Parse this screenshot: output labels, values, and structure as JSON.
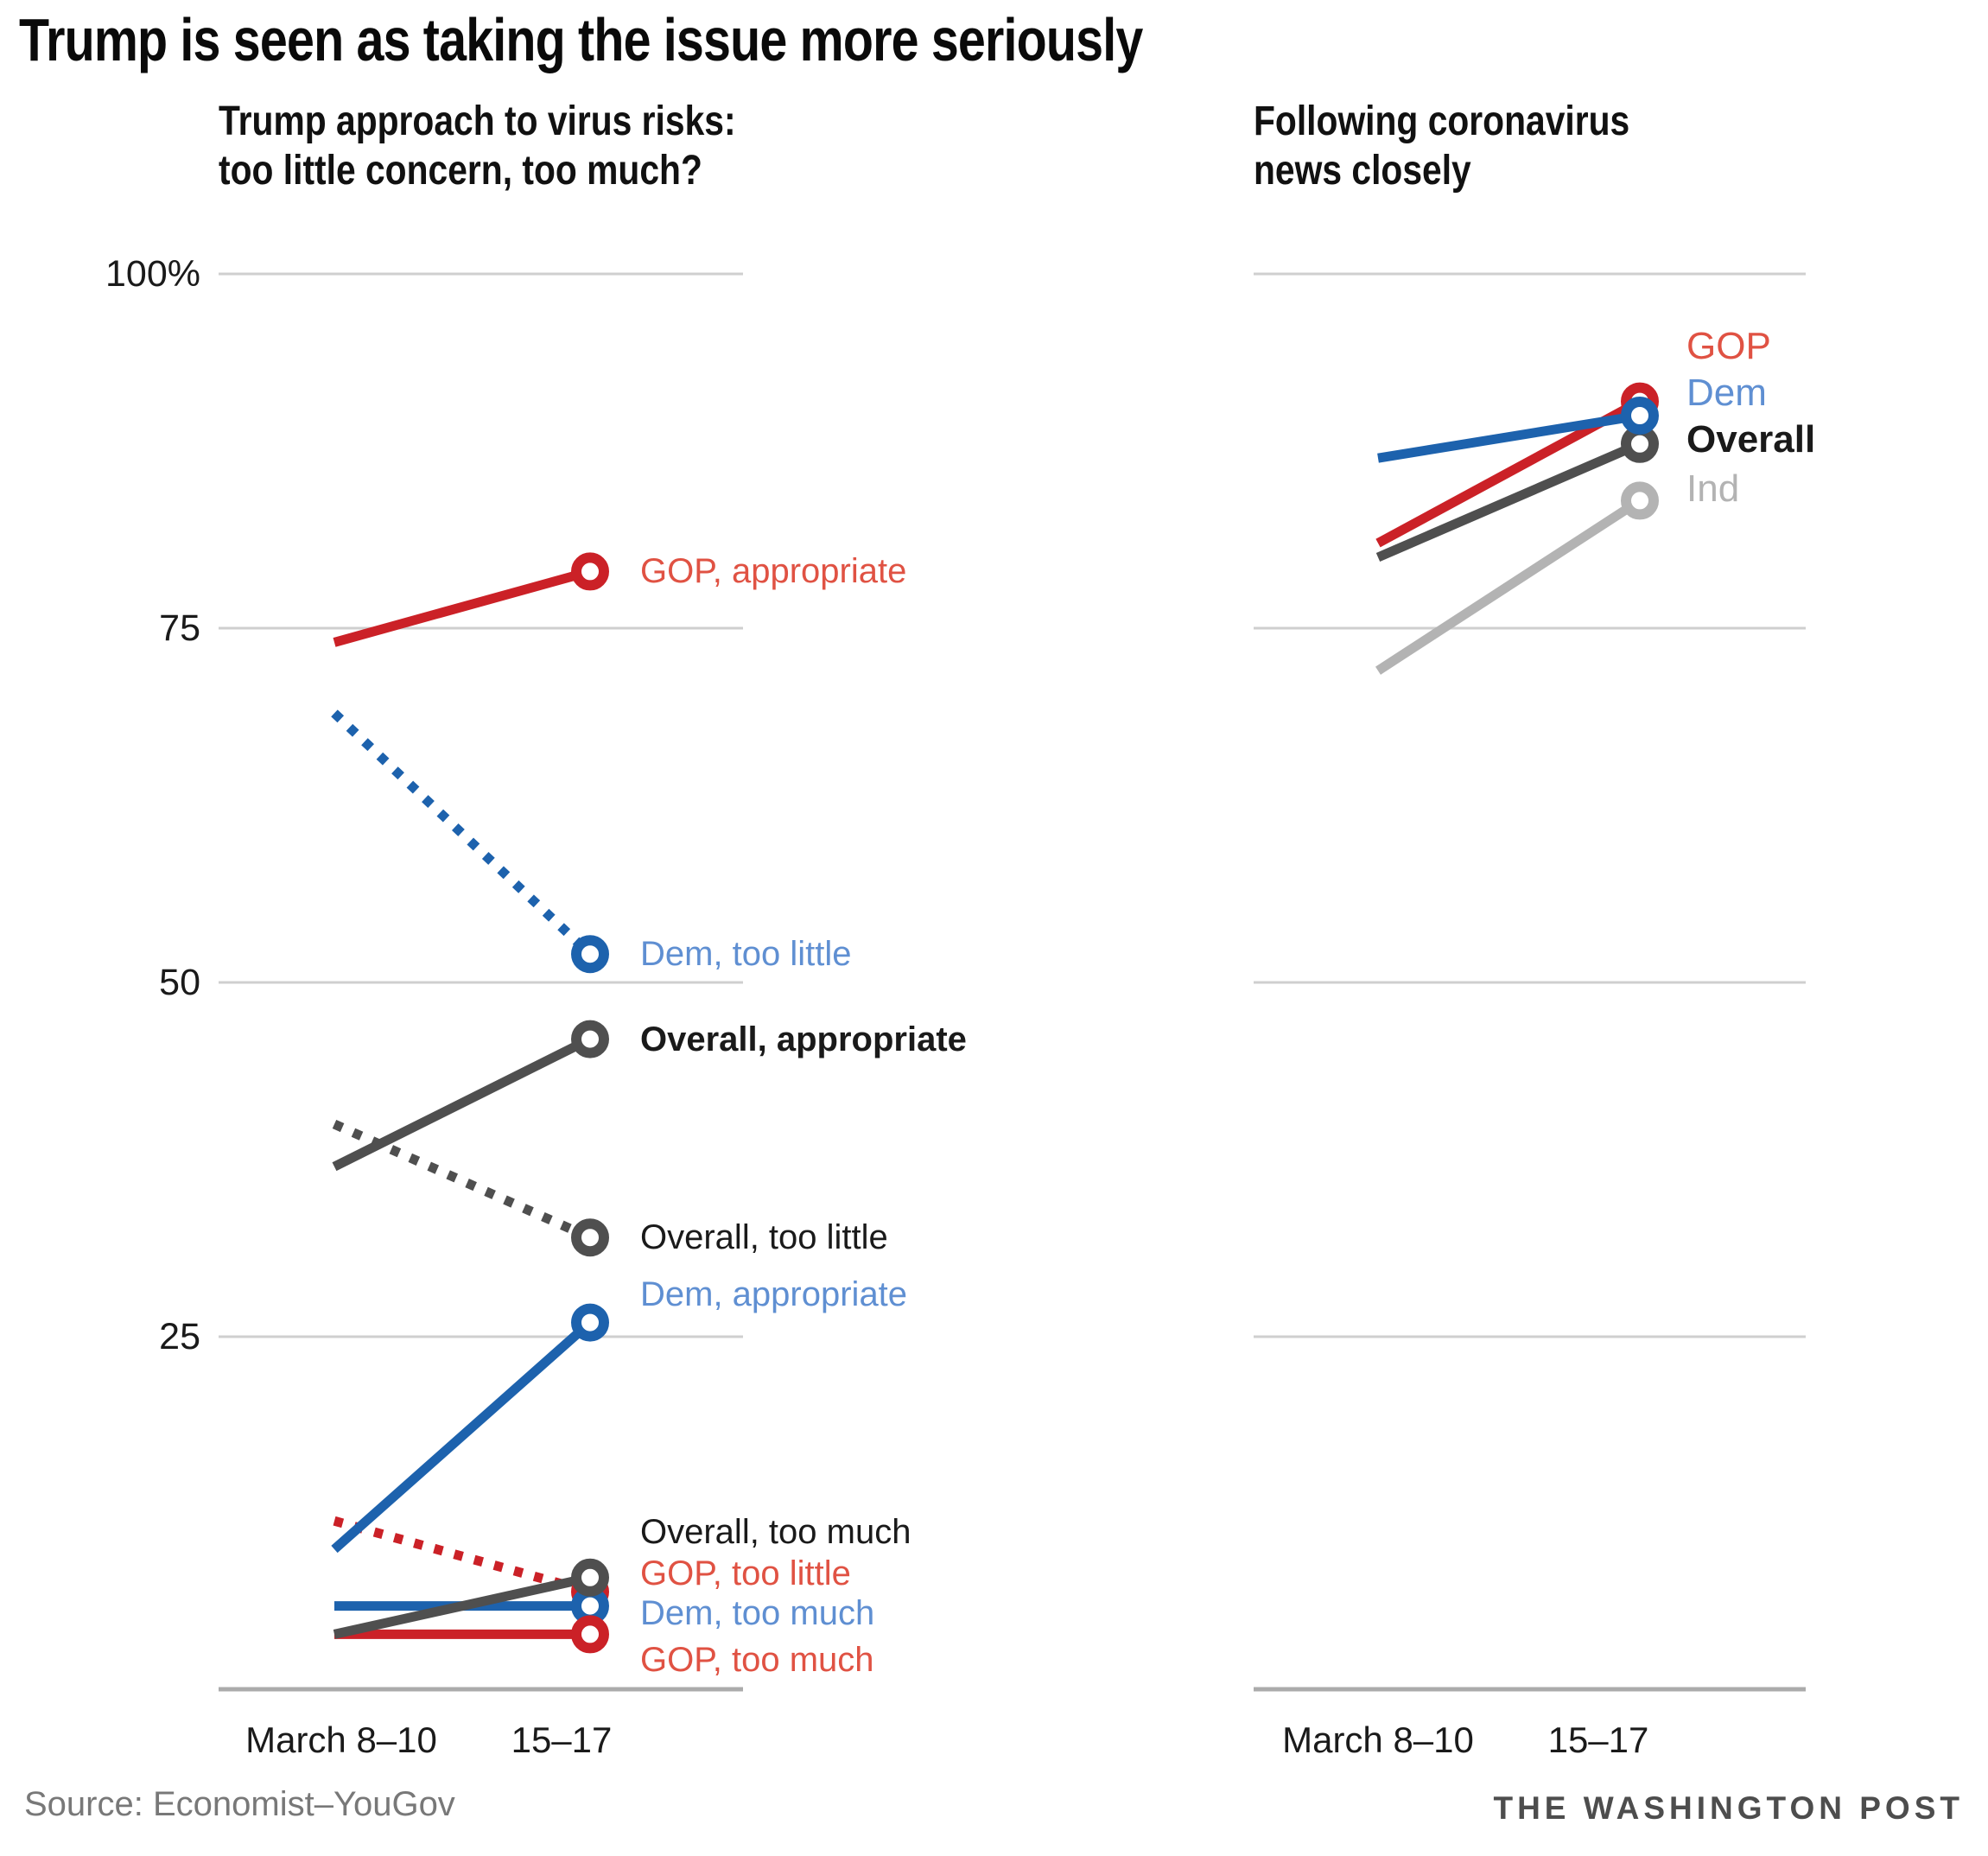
{
  "title": "Trump is seen as taking the issue more seriously",
  "footer": {
    "source": "Source: Economist–YouGov",
    "brand": "THE WASHINGTON POST"
  },
  "colors": {
    "gop": "#cb2127",
    "dem": "#1d62ad",
    "overall": "#4f4f4f",
    "ind": "#b3b3b3",
    "gopLabel": "#e05243",
    "demLabel": "#5f8fd2",
    "dark": "#1a1a1a",
    "indLabel": "#b3b3b3",
    "grid": "#cfcfcf",
    "axis": "#ababab"
  },
  "chart_data": [
    {
      "type": "line",
      "subtitle1": "Trump approach to virus risks:",
      "subtitle2": "too little concern, too much?",
      "x_categories": [
        "March 8–10",
        "15–17"
      ],
      "xlabel": "",
      "ylabel": "",
      "ylim": [
        0,
        100
      ],
      "grid_values": [
        100,
        75,
        50,
        25
      ],
      "y_ticks": [
        {
          "label": "100%",
          "value": 100
        },
        {
          "label": "75",
          "value": 75
        },
        {
          "label": "50",
          "value": 50
        },
        {
          "label": "25",
          "value": 25
        }
      ],
      "legend_position": "right-of-points",
      "series": [
        {
          "name": "overall-too-little",
          "label": "Overall, too little",
          "color": "overall",
          "style": "dotted",
          "values": [
            40,
            32
          ],
          "label_value": 32,
          "label_color": "dark",
          "bold": false
        },
        {
          "name": "dem-too-little",
          "label": "Dem, too little",
          "color": "dem",
          "style": "dotted",
          "values": [
            69,
            52
          ],
          "label_value": 52,
          "label_color": "demLabel",
          "bold": false
        },
        {
          "name": "gop-too-little",
          "label": "GOP, too little",
          "color": "gop",
          "style": "dotted",
          "values": [
            12,
            7
          ],
          "label_value": 8.3,
          "label_color": "gopLabel",
          "bold": false
        },
        {
          "name": "dem-too-much",
          "label": "Dem, too much",
          "color": "dem",
          "style": "solid",
          "values": [
            6,
            6
          ],
          "label_value": 5.5,
          "label_color": "demLabel",
          "bold": false
        },
        {
          "name": "gop-too-much",
          "label": "GOP, too much",
          "color": "gop",
          "style": "solid",
          "values": [
            4,
            4
          ],
          "label_value": 2.2,
          "label_color": "gopLabel",
          "bold": false
        },
        {
          "name": "overall-too-much",
          "label": "Overall, too much",
          "color": "overall",
          "style": "solid",
          "values": [
            4,
            8
          ],
          "label_value": 11.2,
          "label_color": "dark",
          "bold": false
        },
        {
          "name": "dem-appropriate",
          "label": "Dem, appropriate",
          "color": "dem",
          "style": "solid",
          "values": [
            10,
            26
          ],
          "label_value": 28,
          "label_color": "demLabel",
          "bold": false
        },
        {
          "name": "overall-appropriate",
          "label": "Overall, appropriate",
          "color": "overall",
          "style": "solid",
          "values": [
            37,
            46
          ],
          "label_value": 46,
          "label_color": "dark",
          "bold": true
        },
        {
          "name": "gop-appropriate",
          "label": "GOP, appropriate",
          "color": "gop",
          "style": "solid",
          "values": [
            74,
            79
          ],
          "label_value": 79,
          "label_color": "gopLabel",
          "bold": false
        }
      ]
    },
    {
      "type": "line",
      "subtitle1": "Following coronavirus",
      "subtitle2": "news closely",
      "x_categories": [
        "March 8–10",
        "15–17"
      ],
      "xlabel": "",
      "ylabel": "",
      "ylim": [
        0,
        100
      ],
      "grid_values": [
        100,
        75,
        50,
        25
      ],
      "y_ticks": [],
      "legend_position": "right-of-points",
      "series": [
        {
          "name": "ind",
          "label": "Ind",
          "color": "ind",
          "style": "solid",
          "values": [
            72,
            84
          ],
          "label_value": 84.8,
          "label_color": "indLabel",
          "bold": false
        },
        {
          "name": "overall",
          "label": "Overall",
          "color": "overall",
          "style": "solid",
          "values": [
            80,
            88
          ],
          "label_value": 88.3,
          "label_color": "dark",
          "bold": true
        },
        {
          "name": "gop",
          "label": "GOP",
          "color": "gop",
          "style": "solid",
          "values": [
            81,
            91
          ],
          "label_value": 94.9,
          "label_color": "gopLabel",
          "bold": false
        },
        {
          "name": "dem",
          "label": "Dem",
          "color": "dem",
          "style": "solid",
          "values": [
            87,
            90
          ],
          "label_value": 91.6,
          "label_color": "demLabel",
          "bold": false
        }
      ]
    }
  ]
}
